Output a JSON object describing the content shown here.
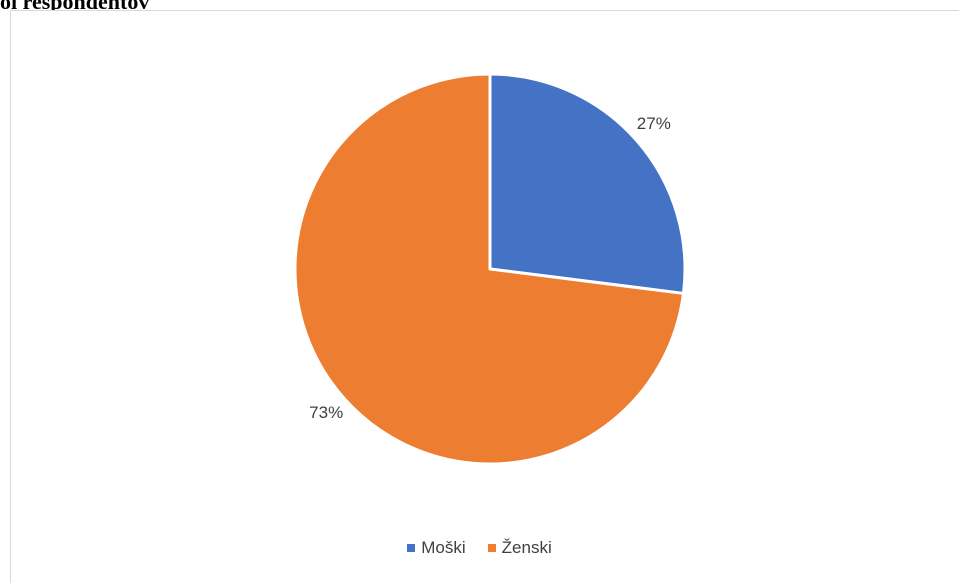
{
  "heading": "oi respondentov",
  "chart_data": {
    "type": "pie",
    "title": "",
    "categories": [
      "Moški",
      "Ženski"
    ],
    "values": [
      27,
      73
    ],
    "labels": [
      "27%",
      "73%"
    ],
    "colors": [
      "#4472C4",
      "#ED7D31"
    ],
    "legend_position": "bottom"
  }
}
